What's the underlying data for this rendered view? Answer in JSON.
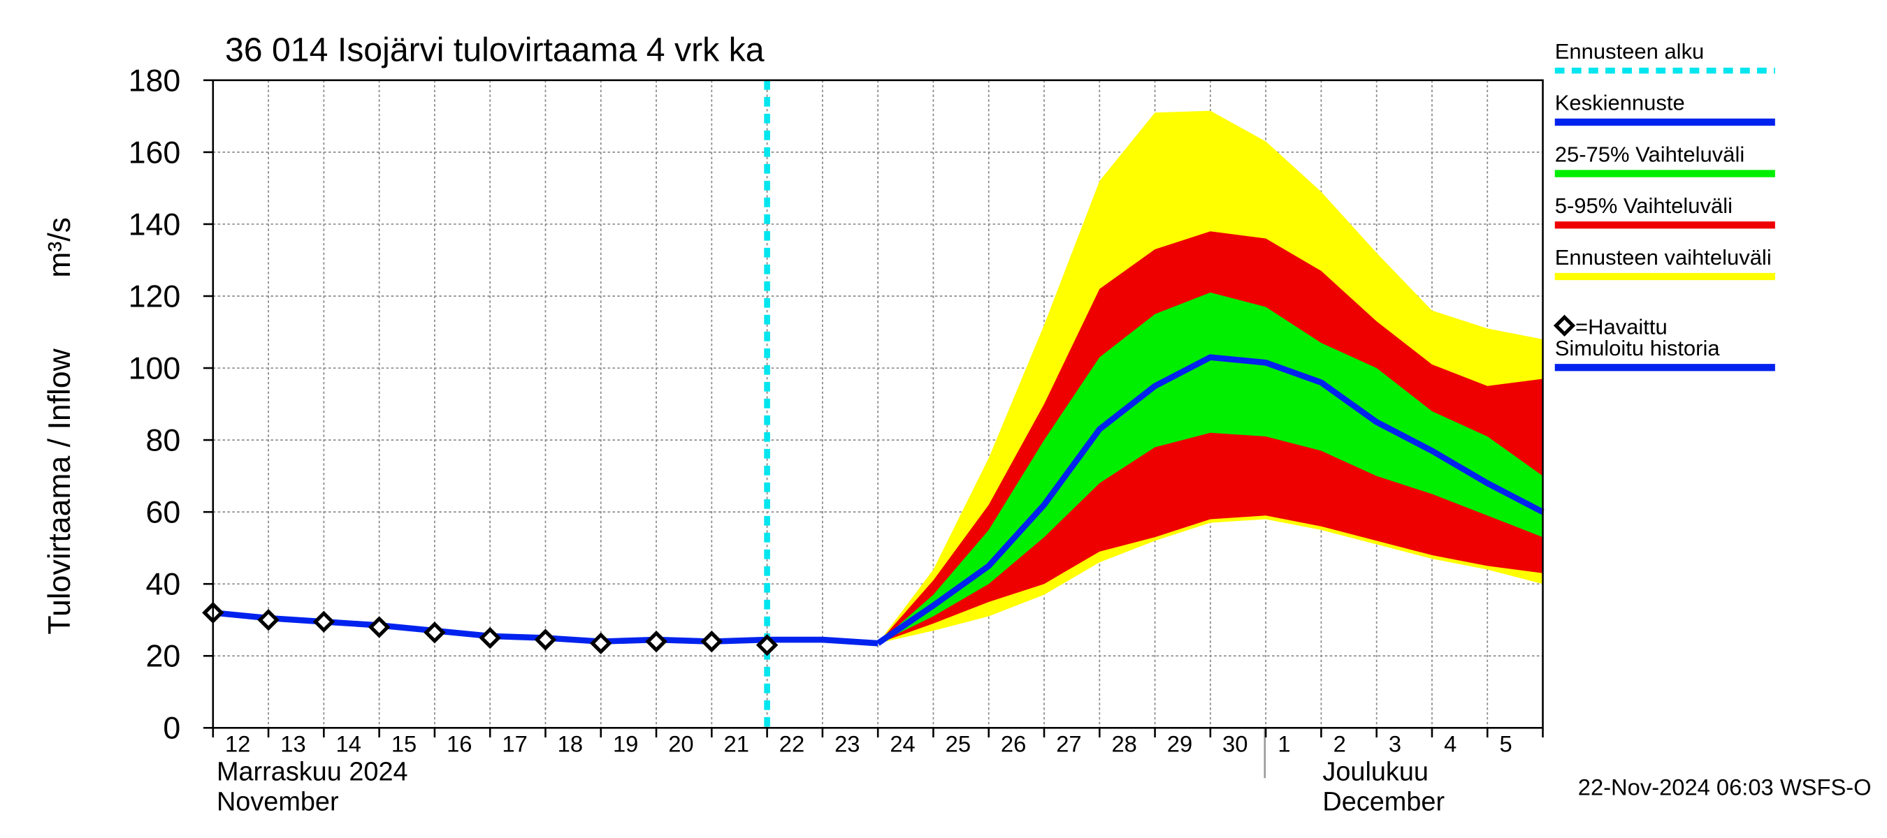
{
  "chart_data": {
    "type": "band-forecast",
    "title": "36 014 Isojärvi tulovirtaama 4 vrk ka",
    "y_label": "Tulovirtaama / Inflow",
    "y_unit": "m³/s",
    "categories": [
      "12",
      "13",
      "14",
      "15",
      "16",
      "17",
      "18",
      "19",
      "20",
      "21",
      "22",
      "23",
      "24",
      "25",
      "26",
      "27",
      "28",
      "29",
      "30",
      "1",
      "2",
      "3",
      "4",
      "5",
      null
    ],
    "months": [
      {
        "name": "Marraskuu 2024",
        "name_en": "November"
      },
      {
        "name": "Joulukuu",
        "name_en": "December"
      }
    ],
    "forecast_start": {
      "name": "Ennusteen alku",
      "color": "#00e5ee",
      "at": "22"
    },
    "series": [
      {
        "name": "Keskiennuste",
        "kind": "line",
        "color": "#0022ee",
        "values": [
          null,
          null,
          null,
          null,
          null,
          null,
          null,
          null,
          null,
          null,
          null,
          null,
          23.5,
          34,
          45,
          62,
          83,
          95,
          103,
          101.5,
          96,
          85,
          77,
          68,
          60
        ]
      },
      {
        "name": "25-75% Vaihteluväli",
        "kind": "band",
        "color": "#00ee00",
        "values": [
          null,
          null,
          null,
          null,
          null,
          null,
          null,
          null,
          null,
          null,
          null,
          null,
          23.5,
          37,
          55,
          80,
          103,
          115,
          121,
          117,
          107,
          100,
          88,
          81,
          70
        ],
        "low": [
          null,
          null,
          null,
          null,
          null,
          null,
          null,
          null,
          null,
          null,
          null,
          null,
          23.5,
          31,
          40,
          53,
          68,
          78,
          82,
          81,
          77,
          70,
          65,
          59,
          53
        ]
      },
      {
        "name": "5-95% Vaihteluväli",
        "kind": "band",
        "color": "#ee0000",
        "values": [
          null,
          null,
          null,
          null,
          null,
          null,
          null,
          null,
          null,
          null,
          null,
          null,
          23.5,
          41,
          62,
          90,
          122,
          133,
          138,
          136,
          127,
          113,
          101,
          95,
          97
        ],
        "low": [
          null,
          null,
          null,
          null,
          null,
          null,
          null,
          null,
          null,
          null,
          null,
          null,
          23.5,
          29,
          35,
          40,
          49,
          53,
          58,
          59,
          56,
          52,
          48,
          45,
          43
        ]
      },
      {
        "name": "Ennusteen vaihteluväli",
        "kind": "band",
        "color": "#ffff00",
        "values": [
          null,
          null,
          null,
          null,
          null,
          null,
          null,
          null,
          null,
          null,
          null,
          null,
          23.5,
          44,
          75,
          112,
          152,
          171,
          171.5,
          163,
          149,
          132,
          116,
          111,
          108
        ],
        "low": [
          null,
          null,
          null,
          null,
          null,
          null,
          null,
          null,
          null,
          null,
          null,
          null,
          23.5,
          27,
          31,
          37,
          46,
          52,
          57,
          58,
          55,
          51,
          47,
          44,
          40
        ]
      },
      {
        "name": "=Havaittu",
        "kind": "points",
        "color": "#000000",
        "values": [
          32,
          30,
          29.5,
          28,
          26.5,
          25,
          24.5,
          23.5,
          24,
          24,
          23,
          null,
          null,
          null,
          null,
          null,
          null,
          null,
          null,
          null,
          null,
          null,
          null,
          null,
          null
        ]
      },
      {
        "name": "Simuloitu historia",
        "kind": "line",
        "color": "#0022ee",
        "values": [
          32,
          30.5,
          29.5,
          28.5,
          27,
          25.5,
          25,
          24,
          24.5,
          24,
          24.5,
          24.5,
          23.5,
          null,
          null,
          null,
          null,
          null,
          null,
          null,
          null,
          null,
          null,
          null,
          null
        ]
      }
    ],
    "ylim": [
      0,
      180
    ],
    "yticks": [
      0,
      20,
      40,
      60,
      80,
      100,
      120,
      140,
      160,
      180
    ],
    "grid": true,
    "footer": "22-Nov-2024 06:03 WSFS-O"
  }
}
